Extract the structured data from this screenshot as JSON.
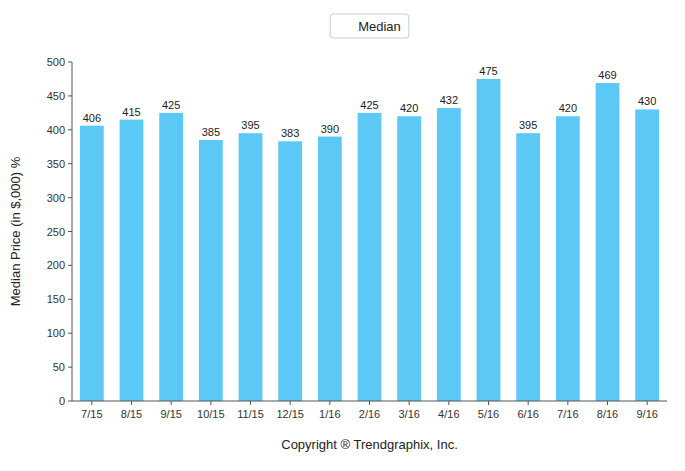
{
  "chart_data": {
    "type": "bar",
    "categories": [
      "7/15",
      "8/15",
      "9/15",
      "10/15",
      "11/15",
      "12/15",
      "1/16",
      "2/16",
      "3/16",
      "4/16",
      "5/16",
      "6/16",
      "7/16",
      "8/16",
      "9/16"
    ],
    "series": [
      {
        "name": "Median",
        "color": "#5BC8F5",
        "values": [
          406,
          415,
          425,
          385,
          395,
          383,
          390,
          425,
          420,
          432,
          475,
          395,
          420,
          469,
          430
        ]
      }
    ],
    "ylabel": "Median Price (in $,000) %",
    "xlabel": "Copyright ® Trendgraphix, Inc.",
    "ylim": [
      0,
      500
    ],
    "yticks": [
      0,
      50,
      100,
      150,
      200,
      250,
      300,
      350,
      400,
      450,
      500
    ],
    "data_labels": true,
    "legend": "top",
    "grid": false
  }
}
